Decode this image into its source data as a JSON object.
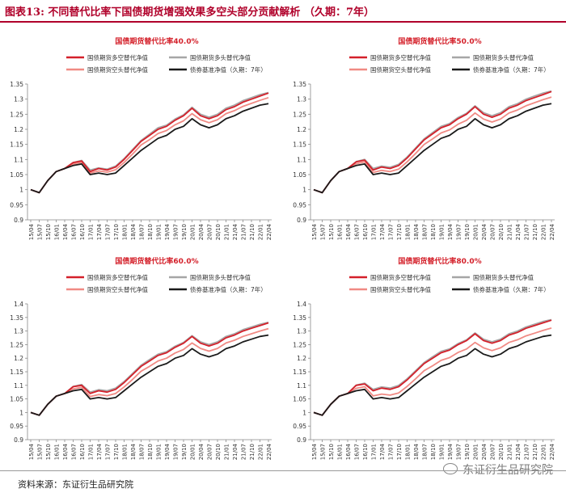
{
  "header": {
    "title": "图表13:  不同替代比率下国债期货增强效果多空头部分贡献解析  （久期：7年）"
  },
  "footer": {
    "source": "资料来源：东证衍生品研究院",
    "watermark": "东证衍生品研究院"
  },
  "colors": {
    "red": "#d4202a",
    "gray": "#a6a6a6",
    "pink": "#f08a84",
    "black": "#1a1a1a",
    "accent": "#b0002a"
  },
  "chart_data": [
    {
      "type": "line",
      "title": "国债期货替代比率40.0%",
      "categories": [
        "15/04",
        "15/07",
        "15/10",
        "16/01",
        "16/04",
        "16/07",
        "16/10",
        "17/01",
        "17/04",
        "17/07",
        "17/10",
        "18/01",
        "18/04",
        "18/07",
        "18/10",
        "19/01",
        "19/04",
        "19/07",
        "19/10",
        "20/01",
        "20/04",
        "20/07",
        "20/10",
        "21/01",
        "21/04",
        "21/07",
        "21/10",
        "22/01",
        "22/04"
      ],
      "ylim": [
        0.9,
        1.35
      ],
      "yticks": [
        "0.9",
        "0.95",
        "1",
        "1.05",
        "1.1",
        "1.15",
        "1.2",
        "1.25",
        "1.3",
        "1.35"
      ],
      "series": [
        {
          "name": "国债期货多空替代净值",
          "values": [
            1.0,
            0.99,
            1.03,
            1.06,
            1.07,
            1.09,
            1.095,
            1.06,
            1.07,
            1.065,
            1.075,
            1.1,
            1.13,
            1.16,
            1.18,
            1.2,
            1.21,
            1.23,
            1.245,
            1.27,
            1.245,
            1.235,
            1.245,
            1.265,
            1.275,
            1.29,
            1.3,
            1.31,
            1.32
          ]
        },
        {
          "name": "国债期货多头替代净值",
          "values": [
            1.0,
            0.99,
            1.03,
            1.06,
            1.07,
            1.09,
            1.097,
            1.065,
            1.072,
            1.068,
            1.078,
            1.103,
            1.133,
            1.163,
            1.184,
            1.205,
            1.214,
            1.234,
            1.248,
            1.273,
            1.25,
            1.24,
            1.25,
            1.27,
            1.28,
            1.295,
            1.305,
            1.315,
            1.322
          ]
        },
        {
          "name": "国债期货空头替代净值",
          "values": [
            1.0,
            0.99,
            1.03,
            1.06,
            1.07,
            1.085,
            1.09,
            1.055,
            1.062,
            1.058,
            1.066,
            1.09,
            1.118,
            1.148,
            1.166,
            1.186,
            1.196,
            1.215,
            1.228,
            1.252,
            1.232,
            1.222,
            1.232,
            1.252,
            1.262,
            1.276,
            1.286,
            1.296,
            1.305
          ]
        },
        {
          "name": "债券基准净值（久期：7年）",
          "values": [
            1.0,
            0.99,
            1.03,
            1.06,
            1.07,
            1.08,
            1.085,
            1.05,
            1.055,
            1.05,
            1.055,
            1.08,
            1.105,
            1.13,
            1.15,
            1.17,
            1.18,
            1.2,
            1.21,
            1.235,
            1.215,
            1.205,
            1.215,
            1.235,
            1.245,
            1.26,
            1.27,
            1.28,
            1.285
          ]
        }
      ]
    },
    {
      "type": "line",
      "title": "国债期货替代比率50.0%",
      "categories": [
        "15/04",
        "15/07",
        "15/10",
        "16/01",
        "16/04",
        "16/07",
        "16/10",
        "17/01",
        "17/04",
        "17/07",
        "17/10",
        "18/01",
        "18/04",
        "18/07",
        "18/10",
        "19/01",
        "19/04",
        "19/07",
        "19/10",
        "20/01",
        "20/04",
        "20/07",
        "20/10",
        "21/01",
        "21/04",
        "21/07",
        "21/10",
        "22/01",
        "22/04"
      ],
      "ylim": [
        0.9,
        1.35
      ],
      "yticks": [
        "0.9",
        "0.95",
        "1",
        "1.05",
        "1.1",
        "1.15",
        "1.2",
        "1.25",
        "1.3",
        "1.35"
      ],
      "series": [
        {
          "name": "国债期货多空替代净值",
          "values": [
            1.0,
            0.99,
            1.03,
            1.06,
            1.07,
            1.092,
            1.098,
            1.065,
            1.075,
            1.07,
            1.08,
            1.105,
            1.135,
            1.165,
            1.185,
            1.205,
            1.215,
            1.235,
            1.25,
            1.275,
            1.25,
            1.24,
            1.25,
            1.27,
            1.28,
            1.295,
            1.305,
            1.315,
            1.325
          ]
        },
        {
          "name": "国债期货多头替代净值",
          "values": [
            1.0,
            0.99,
            1.03,
            1.06,
            1.07,
            1.093,
            1.1,
            1.07,
            1.078,
            1.074,
            1.084,
            1.108,
            1.138,
            1.168,
            1.189,
            1.21,
            1.219,
            1.239,
            1.253,
            1.278,
            1.255,
            1.245,
            1.255,
            1.275,
            1.285,
            1.3,
            1.31,
            1.32,
            1.327
          ]
        },
        {
          "name": "国债期货空头替代净值",
          "values": [
            1.0,
            0.99,
            1.03,
            1.06,
            1.07,
            1.086,
            1.092,
            1.057,
            1.064,
            1.06,
            1.068,
            1.092,
            1.12,
            1.15,
            1.168,
            1.188,
            1.198,
            1.217,
            1.23,
            1.254,
            1.234,
            1.224,
            1.234,
            1.254,
            1.264,
            1.278,
            1.288,
            1.298,
            1.307
          ]
        },
        {
          "name": "债券基准净值（久期：7年）",
          "values": [
            1.0,
            0.99,
            1.03,
            1.06,
            1.07,
            1.08,
            1.085,
            1.05,
            1.055,
            1.05,
            1.055,
            1.08,
            1.105,
            1.13,
            1.15,
            1.17,
            1.18,
            1.2,
            1.21,
            1.235,
            1.215,
            1.205,
            1.215,
            1.235,
            1.245,
            1.26,
            1.27,
            1.28,
            1.285
          ]
        }
      ]
    },
    {
      "type": "line",
      "title": "国债期货替代比率60.0%",
      "categories": [
        "15/04",
        "15/07",
        "15/10",
        "16/01",
        "16/04",
        "16/07",
        "16/10",
        "17/01",
        "17/04",
        "17/07",
        "17/10",
        "18/01",
        "18/04",
        "18/07",
        "18/10",
        "19/01",
        "19/04",
        "19/07",
        "19/10",
        "20/01",
        "20/04",
        "20/07",
        "20/10",
        "21/01",
        "21/04",
        "21/07",
        "21/10",
        "22/01",
        "22/04"
      ],
      "ylim": [
        0.9,
        1.4
      ],
      "yticks": [
        "0.9",
        "0.95",
        "1",
        "1.05",
        "1.1",
        "1.15",
        "1.2",
        "1.25",
        "1.3",
        "1.35",
        "1.4"
      ],
      "series": [
        {
          "name": "国债期货多空替代净值",
          "values": [
            1.0,
            0.99,
            1.03,
            1.06,
            1.07,
            1.095,
            1.1,
            1.07,
            1.08,
            1.075,
            1.085,
            1.11,
            1.14,
            1.17,
            1.19,
            1.21,
            1.22,
            1.24,
            1.255,
            1.28,
            1.255,
            1.245,
            1.255,
            1.275,
            1.285,
            1.3,
            1.31,
            1.32,
            1.33
          ]
        },
        {
          "name": "国债期货多头替代净值",
          "values": [
            1.0,
            0.99,
            1.03,
            1.06,
            1.07,
            1.096,
            1.103,
            1.075,
            1.084,
            1.08,
            1.09,
            1.114,
            1.144,
            1.174,
            1.195,
            1.215,
            1.224,
            1.244,
            1.258,
            1.283,
            1.26,
            1.25,
            1.26,
            1.28,
            1.29,
            1.305,
            1.315,
            1.325,
            1.332
          ]
        },
        {
          "name": "国债期货空头替代净值",
          "values": [
            1.0,
            0.99,
            1.03,
            1.06,
            1.07,
            1.087,
            1.093,
            1.059,
            1.066,
            1.062,
            1.07,
            1.094,
            1.122,
            1.152,
            1.17,
            1.19,
            1.2,
            1.219,
            1.232,
            1.256,
            1.236,
            1.226,
            1.236,
            1.256,
            1.266,
            1.28,
            1.29,
            1.3,
            1.309
          ]
        },
        {
          "name": "债券基准净值（久期：7年）",
          "values": [
            1.0,
            0.99,
            1.03,
            1.06,
            1.07,
            1.08,
            1.085,
            1.05,
            1.055,
            1.05,
            1.055,
            1.08,
            1.105,
            1.13,
            1.15,
            1.17,
            1.18,
            1.2,
            1.21,
            1.235,
            1.215,
            1.205,
            1.215,
            1.235,
            1.245,
            1.26,
            1.27,
            1.28,
            1.285
          ]
        }
      ]
    },
    {
      "type": "line",
      "title": "国债期货替代比率80.0%",
      "categories": [
        "15/04",
        "15/07",
        "15/10",
        "16/01",
        "16/04",
        "16/07",
        "16/10",
        "17/01",
        "17/04",
        "17/07",
        "17/10",
        "18/01",
        "18/04",
        "18/07",
        "18/10",
        "19/01",
        "19/04",
        "19/07",
        "19/10",
        "20/01",
        "20/04",
        "20/07",
        "20/10",
        "21/01",
        "21/04",
        "21/07",
        "21/10",
        "22/01",
        "22/04"
      ],
      "ylim": [
        0.9,
        1.4
      ],
      "yticks": [
        "0.9",
        "0.95",
        "1",
        "1.05",
        "1.1",
        "1.15",
        "1.2",
        "1.25",
        "1.3",
        "1.35",
        "1.4"
      ],
      "series": [
        {
          "name": "国债期货多空替代净值",
          "values": [
            1.0,
            0.99,
            1.03,
            1.06,
            1.07,
            1.1,
            1.105,
            1.08,
            1.09,
            1.085,
            1.095,
            1.12,
            1.15,
            1.18,
            1.2,
            1.22,
            1.23,
            1.25,
            1.265,
            1.29,
            1.265,
            1.255,
            1.265,
            1.285,
            1.295,
            1.31,
            1.32,
            1.33,
            1.34
          ]
        },
        {
          "name": "国债期货多头替代净值",
          "values": [
            1.0,
            0.99,
            1.03,
            1.06,
            1.07,
            1.101,
            1.108,
            1.085,
            1.094,
            1.09,
            1.1,
            1.124,
            1.154,
            1.184,
            1.205,
            1.225,
            1.234,
            1.254,
            1.268,
            1.293,
            1.27,
            1.26,
            1.27,
            1.29,
            1.3,
            1.315,
            1.325,
            1.335,
            1.342
          ]
        },
        {
          "name": "国债期货空头替代净值",
          "values": [
            1.0,
            0.99,
            1.03,
            1.06,
            1.07,
            1.089,
            1.095,
            1.061,
            1.068,
            1.064,
            1.072,
            1.096,
            1.124,
            1.154,
            1.172,
            1.192,
            1.202,
            1.221,
            1.234,
            1.258,
            1.238,
            1.228,
            1.238,
            1.258,
            1.268,
            1.282,
            1.292,
            1.302,
            1.311
          ]
        },
        {
          "name": "债券基准净值（久期：7年）",
          "values": [
            1.0,
            0.99,
            1.03,
            1.06,
            1.07,
            1.08,
            1.085,
            1.05,
            1.055,
            1.05,
            1.055,
            1.08,
            1.105,
            1.13,
            1.15,
            1.17,
            1.18,
            1.2,
            1.21,
            1.235,
            1.215,
            1.205,
            1.215,
            1.235,
            1.245,
            1.26,
            1.27,
            1.28,
            1.285
          ]
        }
      ]
    }
  ]
}
